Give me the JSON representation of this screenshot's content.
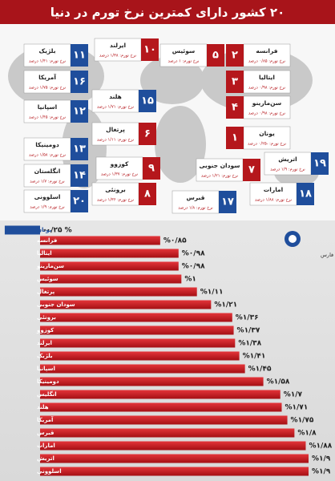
{
  "header": {
    "title": "۲۰ کشور دارای کمترین نرخ تورم در دنیا"
  },
  "map": {
    "countries": [
      {
        "rank": "۱",
        "name": "یونان",
        "rate_text": "نرخ تورم: -۰/۲۵ درصد"
      },
      {
        "rank": "۲",
        "name": "فرانسه",
        "rate_text": "نرخ تورم: ۰/۸۵ درصد"
      },
      {
        "rank": "۳",
        "name": "ایتالیا",
        "rate_text": "نرخ تورم: ۰/۹۸ درصد"
      },
      {
        "rank": "۴",
        "name": "سن‌مارینو",
        "rate_text": "نرخ تورم: ۰/۹۸ درصد"
      },
      {
        "rank": "۵",
        "name": "سوئیس",
        "rate_text": "نرخ تورم: ۱ درصد"
      },
      {
        "rank": "۶",
        "name": "پرتغال",
        "rate_text": "نرخ تورم: ۱/۱۱ درصد"
      },
      {
        "rank": "۷",
        "name": "سودان جنوبی",
        "rate_text": "نرخ تورم: ۱/۲۱ درصد"
      },
      {
        "rank": "۸",
        "name": "برونئی",
        "rate_text": "نرخ تورم: ۱/۳۶ درصد"
      },
      {
        "rank": "۹",
        "name": "کوزوو",
        "rate_text": "نرخ تورم: ۱/۳۷ درصد"
      },
      {
        "rank": "۱۰",
        "name": "ایرلند",
        "rate_text": "نرخ تورم: ۱/۳۸ درصد"
      },
      {
        "rank": "۱۱",
        "name": "بلژیک",
        "rate_text": "نرخ تورم: ۱/۴۱ درصد"
      },
      {
        "rank": "۱۲",
        "name": "اسپانیا",
        "rate_text": "نرخ تورم: ۱/۴۵ درصد"
      },
      {
        "rank": "۱۳",
        "name": "دومینیکا",
        "rate_text": "نرخ تورم: ۱/۵۸ درصد"
      },
      {
        "rank": "۱۴",
        "name": "انگلستان",
        "rate_text": "نرخ تورم: ۱/۷ درصد"
      },
      {
        "rank": "۱۵",
        "name": "هلند",
        "rate_text": "نرخ تورم: ۱/۷۱ درصد"
      },
      {
        "rank": "۱۶",
        "name": "آمریکا",
        "rate_text": "نرخ تورم: ۱/۷۵ درصد"
      },
      {
        "rank": "۱۷",
        "name": "قبرس",
        "rate_text": "نرخ تورم: ۱/۸ درصد"
      },
      {
        "rank": "۱۸",
        "name": "امارات",
        "rate_text": "نرخ تورم: ۱/۸۸ درصد"
      },
      {
        "rank": "۱۹",
        "name": "اتریش",
        "rate_text": "نرخ تورم: ۱/۹ درصد"
      },
      {
        "rank": "۲۰",
        "name": "اسلوونی",
        "rate_text": "نرخ تورم: ۱/۹ درصد"
      }
    ]
  },
  "logo": {
    "text": "داده‌کاوی اقتصاد خبرگزاری فارس"
  },
  "chart_data": {
    "type": "bar",
    "orientation": "horizontal",
    "categories": [
      "یونان",
      "فرانسه",
      "ایتالیا",
      "سن‌مارینو",
      "سوئیس",
      "پرتغال",
      "سودان جنوبی",
      "برونئی",
      "کوزوو",
      "ایرلند",
      "بلژیک",
      "اسپانیا",
      "دومینیکا",
      "انگلیس",
      "هلند",
      "آمریکا",
      "قبرس",
      "امارات",
      "اتریش",
      "اسلوونی"
    ],
    "values": [
      -0.25,
      0.85,
      0.98,
      0.98,
      1,
      1.11,
      1.21,
      1.36,
      1.37,
      1.38,
      1.41,
      1.45,
      1.58,
      1.7,
      1.71,
      1.75,
      1.8,
      1.88,
      1.9,
      1.9
    ],
    "value_labels": [
      "-۰/۲۵ %",
      "%۰/۸۵",
      "%۰/۹۸",
      "%۰/۹۸",
      "%۱",
      "%۱/۱۱",
      "%۱/۲۱",
      "%۱/۳۶",
      "%۱/۳۷",
      "%۱/۳۸",
      "%۱/۴۱",
      "%۱/۴۵",
      "%۱/۵۸",
      "%۱/۷",
      "%۱/۷۱",
      "%۱/۷۵",
      "%۱/۸",
      "%۱/۸۸",
      "%۱/۹",
      "%۱/۹"
    ],
    "color": "#cc1b1f",
    "negative_color": "#1f4e9c"
  }
}
